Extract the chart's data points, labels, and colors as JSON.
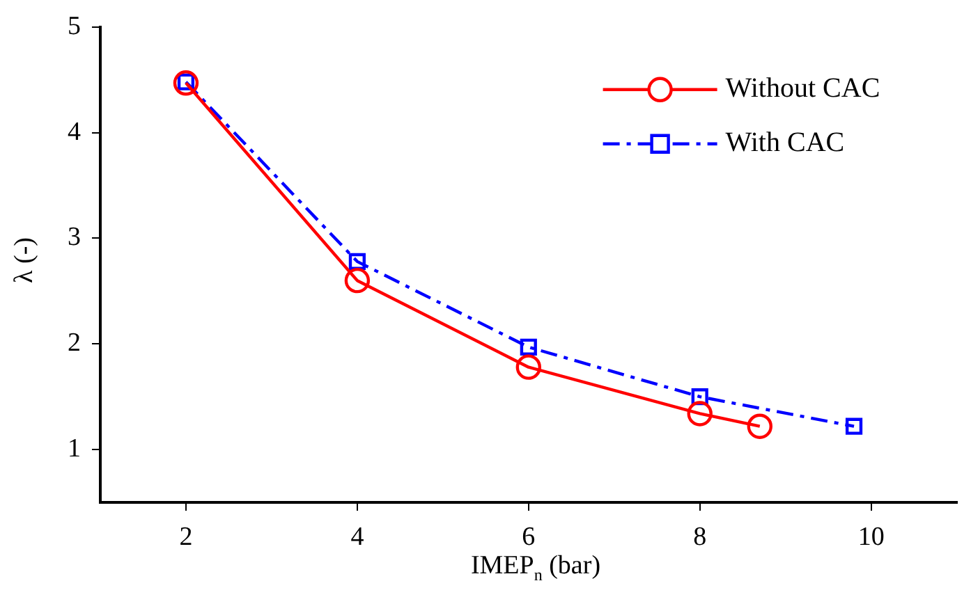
{
  "chart_data": {
    "type": "line",
    "xlabel": "IMEP$_{n}$ (bar)",
    "ylabel": "λ (-)",
    "xlim": [
      1,
      11
    ],
    "xticks": [
      2,
      4,
      6,
      8,
      10
    ],
    "ylim": [
      0.5,
      5
    ],
    "yticks": [
      1,
      2,
      3,
      4,
      5
    ],
    "grid": false,
    "legend": "top right",
    "series": [
      {
        "name": "Without CAC",
        "color": "#ff0000",
        "marker": "circle",
        "line_style": "solid",
        "x": [
          2,
          4,
          6,
          8,
          8.7
        ],
        "values": [
          4.47,
          2.6,
          1.78,
          1.34,
          1.22
        ]
      },
      {
        "name": "With CAC",
        "color": "#0000ff",
        "marker": "square",
        "line_style": "dashed",
        "x": [
          2,
          4,
          6,
          8,
          9.8
        ],
        "values": [
          4.48,
          2.78,
          1.97,
          1.5,
          1.22
        ]
      }
    ]
  }
}
